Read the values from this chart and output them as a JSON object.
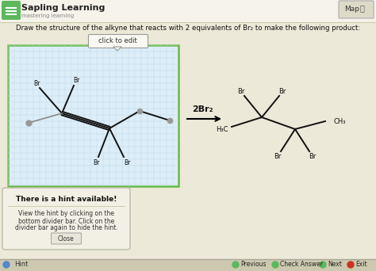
{
  "bg_color": "#ece9d8",
  "header_bg": "#f5f3ea",
  "header_text": "Sapling Learning",
  "header_sub": "mastering learning",
  "header_icon_color": "#5cb85c",
  "question_text": "Draw the structure of the alkyne that reacts with 2 equivalents of Br₂ to make the following product:",
  "click_to_edit": "click to edit",
  "map_text": "Map",
  "grid_bg": "#ddeef8",
  "grid_border": "#66bb44",
  "hint_title": "There is a hint available!",
  "hint_body1": "View the hint by clicking on the",
  "hint_body2": "bottom divider bar. Click on the",
  "hint_body3": "divider bar again to hide the hint.",
  "hint_close": "Close",
  "bottom_bar_bg": "#ccc9b0",
  "hint_label": "Hint",
  "nav_previous": "Previous",
  "nav_check": "Check Answer",
  "nav_next": "Next",
  "nav_exit": "Exit",
  "reagent_text": "2Br₂",
  "arrow_color": "#000000",
  "line_color": "#111111",
  "label_color": "#111111",
  "grid_line_color": "#c0d8e8",
  "grid_step": 8
}
